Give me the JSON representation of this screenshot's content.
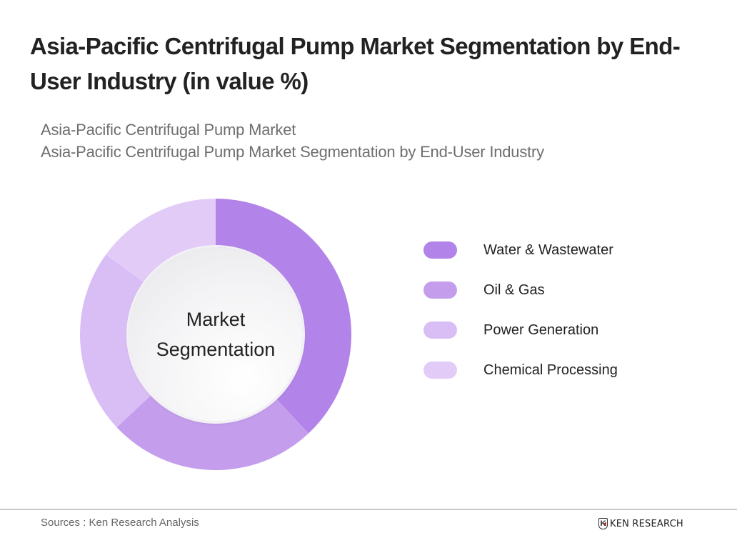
{
  "header": {
    "title": "Asia-Pacific Centrifugal Pump Market  Segmentation by End-User Industry (in value %)",
    "subtitle_line1": "Asia-Pacific Centrifugal Pump Market",
    "subtitle_line2": "Asia-Pacific Centrifugal Pump Market Segmentation by End-User Industry"
  },
  "chart": {
    "center_label_line1": "Market",
    "center_label_line2": "Segmentation"
  },
  "legend": [
    {
      "label": "Water & Wastewater",
      "color": "#b283e8"
    },
    {
      "label": "Oil & Gas",
      "color": "#c59ded"
    },
    {
      "label": "Power Generation",
      "color": "#d9bef5"
    },
    {
      "label": "Chemical Processing",
      "color": "#e2ccf7"
    }
  ],
  "footer": {
    "source": "Sources : Ken Research Analysis",
    "logo_mark": "K",
    "logo_text": "KEN RESEARCH"
  },
  "chart_data": {
    "type": "pie",
    "title": "Asia-Pacific Centrifugal Pump Market  Segmentation by End-User Industry (in value %)",
    "subtitle": "Asia-Pacific Centrifugal Pump Market Segmentation by End-User Industry",
    "categories": [
      "Water & Wastewater",
      "Oil & Gas",
      "Power Generation",
      "Chemical Processing"
    ],
    "values": [
      38,
      25,
      22,
      15
    ],
    "colors": [
      "#b283e8",
      "#c59ded",
      "#d9bef5",
      "#e2ccf7"
    ],
    "donut": true,
    "center_text": "Market Segmentation",
    "start_angle": "12 o'clock, clockwise",
    "legend_position": "right",
    "data_labels": false
  }
}
